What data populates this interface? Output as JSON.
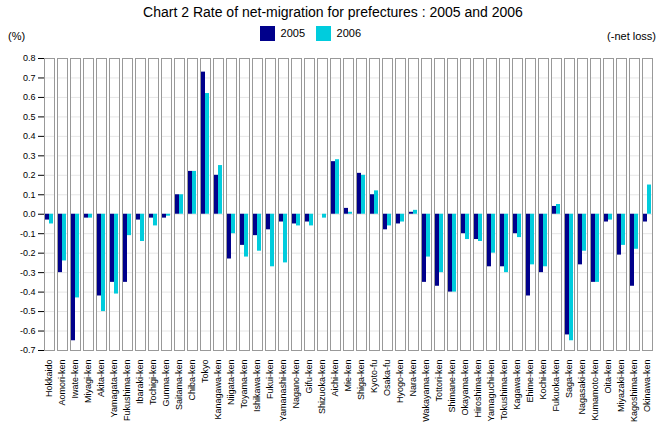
{
  "chart_data": {
    "type": "bar",
    "title": "Chart 2  Rate of net-migration for prefectures : 2005 and 2006",
    "ylabel": "(%)",
    "annotations": [
      "(-net loss)"
    ],
    "categories": [
      "Hokkaido",
      "Aomori-ken",
      "Iwate-ken",
      "Miyagi-ken",
      "Akita-ken",
      "Yamagata-ken",
      "Fukushima-ken",
      "Ibaraki-ken",
      "Tochigi-ken",
      "Gunma-ken",
      "Saitama-ken",
      "Chiba-ken",
      "Tokyo",
      "Kanagawa-ken",
      "Niigata-ken",
      "Toyama-ken",
      "Ishikawa-ken",
      "Fukui-ken",
      "Yamanashi-ken",
      "Nagano-ken",
      "Gifu-ken",
      "Shizuoka-ken",
      "Aichi-ken",
      "Mie-ken",
      "Shiga-ken",
      "Kyoto-fu",
      "Osaka-fu",
      "Hyogo-ken",
      "Nara-ken",
      "Wakayama-ken",
      "Tottori-ken",
      "Shimane-ken",
      "Okayama-ken",
      "Hiroshima-ken",
      "Yamaguchi-ken",
      "Tokushima-ken",
      "Kagawa-ken",
      "Ehime-ken",
      "Kochi-ken",
      "Fukuoka-ken",
      "Saga-ken",
      "Nagasaki-ken",
      "Kumamoto-ken",
      "Oita-ken",
      "Miyazaki-ken",
      "Kagoshima-ken",
      "Okinawa-ken"
    ],
    "series": [
      {
        "name": "2005",
        "color": "#00008B",
        "values": [
          -0.03,
          -0.3,
          -0.65,
          -0.02,
          -0.42,
          -0.35,
          -0.35,
          -0.03,
          -0.02,
          -0.02,
          0.1,
          0.22,
          0.73,
          0.2,
          -0.23,
          -0.16,
          -0.11,
          -0.08,
          -0.04,
          -0.05,
          -0.04,
          0.0,
          0.27,
          0.03,
          0.21,
          0.1,
          -0.08,
          -0.05,
          0.01,
          -0.35,
          -0.37,
          -0.4,
          -0.1,
          -0.13,
          -0.27,
          -0.27,
          -0.1,
          -0.42,
          -0.3,
          0.04,
          -0.62,
          -0.26,
          -0.35,
          -0.04,
          -0.21,
          -0.37,
          -0.04
        ]
      },
      {
        "name": "2006",
        "color": "#00CCDD",
        "values": [
          -0.05,
          -0.24,
          -0.43,
          -0.02,
          -0.5,
          -0.41,
          -0.11,
          -0.14,
          -0.06,
          -0.01,
          0.1,
          0.22,
          0.62,
          0.25,
          -0.1,
          -0.22,
          -0.19,
          -0.27,
          -0.25,
          -0.06,
          -0.06,
          -0.02,
          0.28,
          0.01,
          0.2,
          0.12,
          -0.06,
          -0.04,
          0.02,
          -0.22,
          -0.3,
          -0.4,
          -0.13,
          -0.14,
          -0.2,
          -0.3,
          -0.12,
          -0.26,
          -0.27,
          0.05,
          -0.65,
          -0.19,
          -0.35,
          -0.03,
          -0.16,
          -0.18,
          0.15
        ]
      }
    ],
    "ylim": [
      -0.7,
      0.8
    ],
    "yticks": [
      -0.7,
      -0.6,
      -0.5,
      -0.4,
      -0.3,
      -0.2,
      -0.1,
      {
        "value": 0,
        "label": "0.0"
      },
      0.1,
      0.2,
      0.3,
      0.4,
      0.5,
      0.6,
      0.7,
      0.8
    ],
    "grid": true,
    "legend": "top"
  }
}
